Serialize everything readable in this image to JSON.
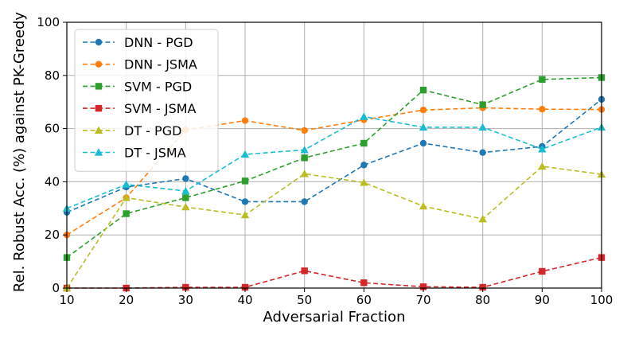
{
  "chart_data": {
    "type": "line",
    "title": "",
    "xlabel": "Adversarial Fraction",
    "ylabel": "Rel. Robust Acc. (%) against PK-Greedy",
    "x": [
      10,
      20,
      30,
      40,
      50,
      60,
      70,
      80,
      90,
      100
    ],
    "xlim": [
      10,
      100
    ],
    "ylim": [
      0,
      100
    ],
    "xticks": [
      10,
      20,
      30,
      40,
      50,
      60,
      70,
      80,
      90,
      100
    ],
    "yticks": [
      0,
      20,
      40,
      60,
      80,
      100
    ],
    "grid": true,
    "legend_position": "top-left",
    "series": [
      {
        "name": "DNN - PGD",
        "color": "#1f77b4",
        "marker": "circle",
        "values": [
          28.5,
          38.0,
          41.2,
          32.5,
          32.5,
          46.3,
          54.5,
          51.0,
          53.3,
          71.0
        ]
      },
      {
        "name": "DNN - JSMA",
        "color": "#ff7f0e",
        "marker": "circle",
        "values": [
          20.0,
          34.0,
          59.5,
          63.0,
          59.3,
          63.3,
          67.0,
          67.8,
          67.3,
          67.2
        ]
      },
      {
        "name": "SVM - PGD",
        "color": "#2ca02c",
        "marker": "square",
        "values": [
          11.5,
          28.0,
          34.0,
          40.3,
          49.0,
          54.5,
          74.5,
          69.0,
          78.5,
          79.2
        ]
      },
      {
        "name": "SVM - JSMA",
        "color": "#d62728",
        "marker": "square",
        "values": [
          0.0,
          0.0,
          0.3,
          0.3,
          6.5,
          2.0,
          0.5,
          0.3,
          6.3,
          11.5
        ]
      },
      {
        "name": "DT - PGD",
        "color": "#bcbd22",
        "marker": "triangle",
        "values": [
          0.0,
          34.0,
          30.5,
          27.5,
          43.0,
          39.7,
          30.8,
          26.0,
          45.8,
          42.8
        ]
      },
      {
        "name": "DT - JSMA",
        "color": "#17becf",
        "marker": "triangle",
        "values": [
          30.0,
          39.0,
          36.5,
          50.3,
          52.0,
          64.5,
          60.5,
          60.5,
          52.3,
          60.5
        ]
      }
    ]
  }
}
